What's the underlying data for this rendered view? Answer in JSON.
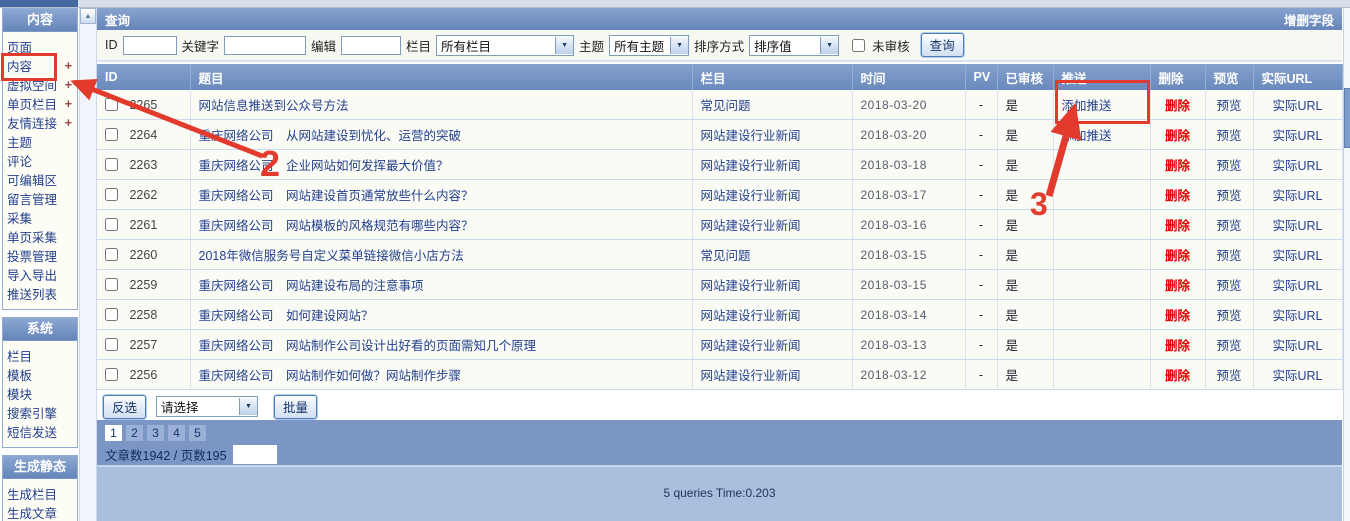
{
  "colors": {
    "accent": "#7090c0",
    "annotation_red": "#e23b2e",
    "link": "#24418e",
    "delete_red": "#e00000"
  },
  "sidebar": {
    "plus_sign": "+",
    "groups": [
      {
        "title": "内容",
        "items": [
          {
            "label": "页面",
            "plus": false
          },
          {
            "label": "内容",
            "plus": true,
            "annotated": true
          },
          {
            "label": "虚拟空间",
            "plus": true
          },
          {
            "label": "单页栏目",
            "plus": true
          },
          {
            "label": "友情连接",
            "plus": true
          },
          {
            "label": "主题",
            "plus": false
          },
          {
            "label": "评论",
            "plus": false
          },
          {
            "label": "可编辑区",
            "plus": false
          },
          {
            "label": "留言管理",
            "plus": false
          },
          {
            "label": "采集",
            "plus": false
          },
          {
            "label": "单页采集",
            "plus": false
          },
          {
            "label": "投票管理",
            "plus": false
          },
          {
            "label": "导入导出",
            "plus": false
          },
          {
            "label": "推送列表",
            "plus": false
          }
        ]
      },
      {
        "title": "系统",
        "items": [
          {
            "label": "栏目",
            "plus": false
          },
          {
            "label": "模板",
            "plus": false
          },
          {
            "label": "模块",
            "plus": false
          },
          {
            "label": "搜索引擎",
            "plus": false
          },
          {
            "label": "短信发送",
            "plus": false
          }
        ]
      },
      {
        "title": "生成静态",
        "items": [
          {
            "label": "生成栏目",
            "plus": false
          },
          {
            "label": "生成文章",
            "plus": false
          }
        ]
      }
    ]
  },
  "query_panel": {
    "title": "查询",
    "header_action": "增删字段"
  },
  "filters": {
    "id_label": "ID",
    "id_value": "",
    "keyword_label": "关键字",
    "keyword_value": "",
    "editor_label": "编辑",
    "editor_value": "",
    "category_label": "栏目",
    "category_value": "所有栏目",
    "theme_label": "主题",
    "theme_value": "所有主题",
    "sort_label": "排序方式",
    "sort_value": "排序值",
    "unaudited_label": "未审核",
    "search_button": "查询"
  },
  "table": {
    "headers": [
      "ID",
      "题目",
      "栏目",
      "时间",
      "PV",
      "已审核",
      "推送",
      "删除",
      "预览",
      "实际URL"
    ],
    "action_labels": {
      "delete": "删除",
      "preview": "预览",
      "url": "实际URL"
    },
    "rows": [
      {
        "id": "2265",
        "title": "网站信息推送到公众号方法",
        "category": "常见问题",
        "date": "2018-03-20",
        "pv": "-",
        "audited": "是",
        "push": "添加推送"
      },
      {
        "id": "2264",
        "title": "重庆网络公司　从网站建设到忧化、运营的突破",
        "category": "网站建设行业新闻",
        "date": "2018-03-20",
        "pv": "-",
        "audited": "是",
        "push": "添加推送"
      },
      {
        "id": "2263",
        "title": "重庆网络公司　企业网站如何发挥最大价值？",
        "category": "网站建设行业新闻",
        "date": "2018-03-18",
        "pv": "-",
        "audited": "是",
        "push": ""
      },
      {
        "id": "2262",
        "title": "重庆网络公司　网站建设首页通常放些什么内容？",
        "category": "网站建设行业新闻",
        "date": "2018-03-17",
        "pv": "-",
        "audited": "是",
        "push": ""
      },
      {
        "id": "2261",
        "title": "重庆网络公司　网站模板的风格规范有哪些内容？",
        "category": "网站建设行业新闻",
        "date": "2018-03-16",
        "pv": "-",
        "audited": "是",
        "push": ""
      },
      {
        "id": "2260",
        "title": "2018年微信服务号自定义菜单链接微信小店方法",
        "category": "常见问题",
        "date": "2018-03-15",
        "pv": "-",
        "audited": "是",
        "push": ""
      },
      {
        "id": "2259",
        "title": "重庆网络公司　网站建设布局的注意事项",
        "category": "网站建设行业新闻",
        "date": "2018-03-15",
        "pv": "-",
        "audited": "是",
        "push": ""
      },
      {
        "id": "2258",
        "title": "重庆网络公司　如何建设网站？",
        "category": "网站建设行业新闻",
        "date": "2018-03-14",
        "pv": "-",
        "audited": "是",
        "push": ""
      },
      {
        "id": "2257",
        "title": "重庆网络公司　网站制作公司设计出好看的页面需知几个原理",
        "category": "网站建设行业新闻",
        "date": "2018-03-13",
        "pv": "-",
        "audited": "是",
        "push": ""
      },
      {
        "id": "2256",
        "title": "重庆网络公司　网站制作如何做？网站制作步骤",
        "category": "网站建设行业新闻",
        "date": "2018-03-12",
        "pv": "-",
        "audited": "是",
        "push": ""
      }
    ]
  },
  "batch": {
    "invert_button": "反选",
    "select_value": "请选择",
    "batch_button": "批量"
  },
  "pagination": {
    "pages": [
      "1",
      "2",
      "3",
      "4",
      "5"
    ],
    "current_page": "1",
    "summary": "文章数1942 / 页数195",
    "page_input_value": ""
  },
  "footer": {
    "status": "5 queries Time:0.203"
  },
  "annotations": {
    "step2_label": "2",
    "step3_label": "3"
  }
}
